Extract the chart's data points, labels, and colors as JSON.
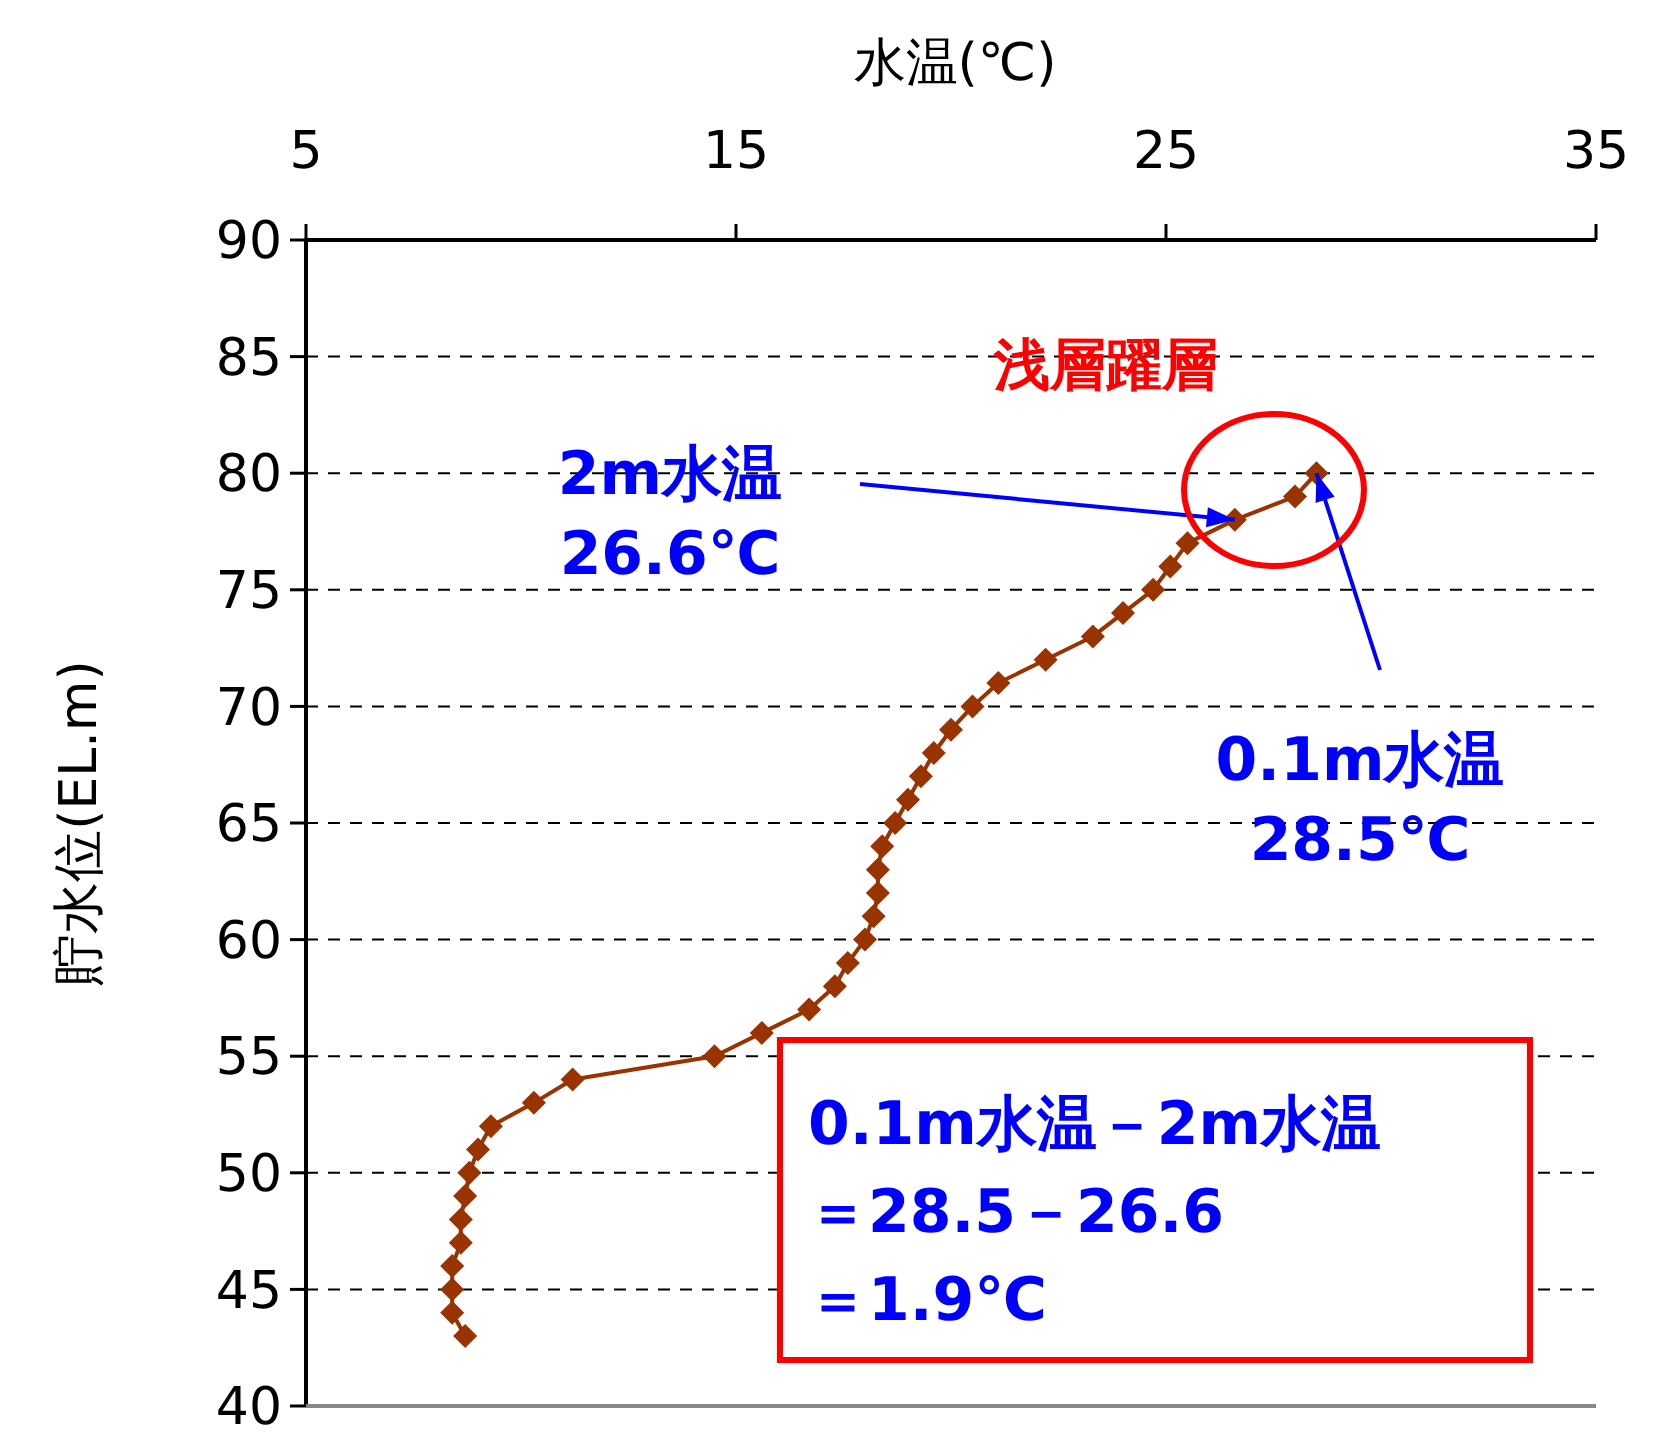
{
  "chart_data": {
    "type": "line",
    "xlabel": "水温(℃)",
    "ylabel": "貯水位(EL.m)",
    "xlim": [
      5,
      35
    ],
    "xticks": [
      5,
      15,
      25,
      35
    ],
    "ylim": [
      40,
      90
    ],
    "yticks": [
      40,
      45,
      50,
      55,
      60,
      65,
      70,
      75,
      80,
      85,
      90
    ],
    "grid": "y",
    "marker": "diamond",
    "line_style": "solid",
    "series": [
      {
        "color": "#993300",
        "x": [
          28.5,
          28.0,
          26.6,
          25.5,
          25.1,
          24.7,
          24.0,
          23.3,
          22.2,
          21.1,
          20.5,
          20.0,
          19.6,
          19.3,
          19.0,
          18.7,
          18.4,
          18.3,
          18.3,
          18.2,
          18.0,
          17.6,
          17.3,
          16.7,
          15.6,
          14.5,
          11.2,
          10.3,
          9.3,
          9.0,
          8.8,
          8.7,
          8.6,
          8.6,
          8.4,
          8.4,
          8.4,
          8.7
        ],
        "values": [
          80,
          79,
          78,
          77,
          76,
          75,
          74,
          73,
          72,
          71,
          70,
          69,
          68,
          67,
          66,
          65,
          64,
          63,
          62,
          61,
          60,
          59,
          58,
          57,
          56,
          55,
          54,
          53,
          52,
          51,
          50,
          49,
          48,
          47,
          46,
          45,
          44,
          43
        ]
      }
    ],
    "annotations": [
      "浅層躍層",
      {
        "text": "2m水温",
        "x": 26.6,
        "y": 78
      },
      "26.6℃",
      {
        "text": "0.1m水温",
        "x": 28.5,
        "y": 80
      },
      "28.5℃",
      "0.1m水温－2m水温",
      "＝28.5－26.6",
      "＝1.9℃"
    ]
  }
}
